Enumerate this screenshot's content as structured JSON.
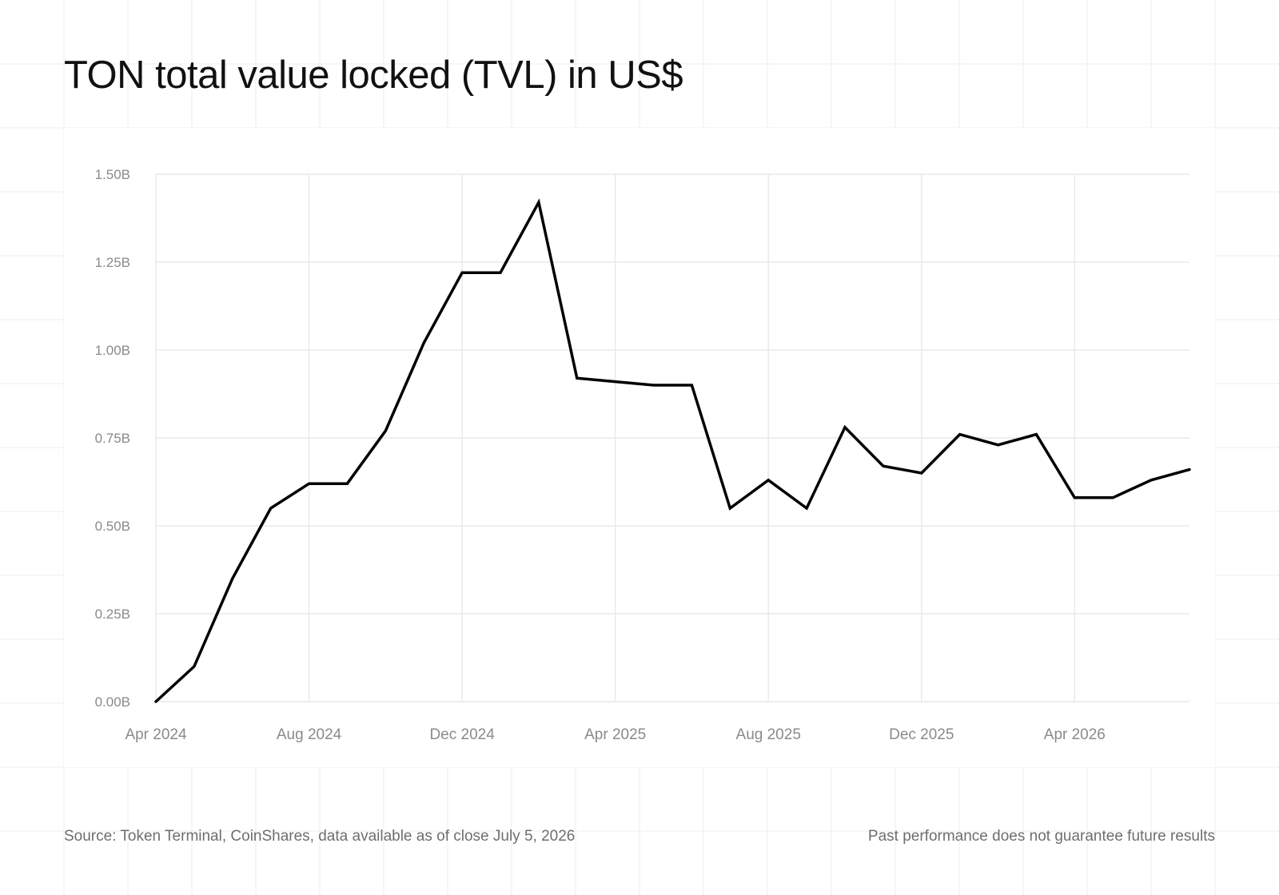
{
  "title": "TON total value locked (TVL) in US$",
  "source": "Source: Token Terminal, CoinShares, data available as of close July 5, 2026",
  "disclaimer": "Past performance does not guarantee future results",
  "colors": {
    "line": "#000000",
    "grid": "#e9e9e9",
    "background_grid": "#ececec",
    "tick_text": "#8a8a8a",
    "footer_text": "#6e6e6e"
  },
  "chart_data": {
    "type": "line",
    "title": "TON total value locked (TVL) in US$",
    "xlabel": "",
    "ylabel": "",
    "grid": true,
    "x_ticks": [
      "Apr 2024",
      "Aug 2024",
      "Dec 2024",
      "Apr 2025",
      "Aug 2025",
      "Dec 2025",
      "Apr 2026"
    ],
    "y_ticks": [
      "0.00B",
      "0.25B",
      "0.50B",
      "0.75B",
      "1.00B",
      "1.25B",
      "1.50B"
    ],
    "ylim": [
      0,
      1.5
    ],
    "y_unit": "B",
    "xlim": [
      "2024-04",
      "2026-07"
    ],
    "x": [
      "2024-04",
      "2024-05",
      "2024-06",
      "2024-07",
      "2024-08",
      "2024-09",
      "2024-10",
      "2024-11",
      "2024-12",
      "2025-01",
      "2025-02",
      "2025-03",
      "2025-04",
      "2025-05",
      "2025-06",
      "2025-07",
      "2025-08",
      "2025-09",
      "2025-10",
      "2025-11",
      "2025-12",
      "2026-01",
      "2026-02",
      "2026-03",
      "2026-04",
      "2026-05",
      "2026-06",
      "2026-07"
    ],
    "series": [
      {
        "values": [
          0.0,
          0.1,
          0.35,
          0.55,
          0.62,
          0.62,
          0.77,
          1.02,
          1.22,
          1.22,
          1.42,
          0.92,
          0.91,
          0.9,
          0.9,
          0.55,
          0.63,
          0.55,
          0.78,
          0.67,
          0.65,
          0.76,
          0.73,
          0.76,
          0.58,
          0.58,
          0.63,
          0.66
        ]
      }
    ]
  }
}
